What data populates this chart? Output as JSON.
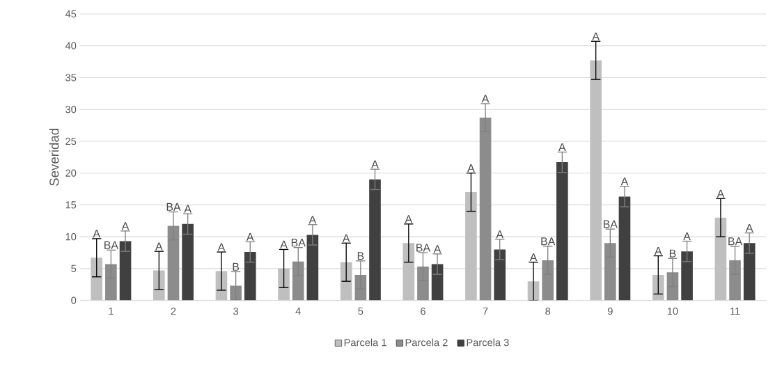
{
  "chart_data": {
    "type": "bar",
    "ylabel": "Severidad",
    "categories": [
      "1",
      "2",
      "3",
      "4",
      "5",
      "6",
      "7",
      "8",
      "9",
      "10",
      "11"
    ],
    "series": [
      {
        "name": "Parcela 1",
        "color": "#bfbfbf",
        "values": [
          6.7,
          4.7,
          4.6,
          5,
          6,
          9,
          17,
          3,
          37.7,
          4,
          13
        ],
        "errors": [
          3,
          3,
          3,
          3,
          3,
          3,
          3,
          3,
          3,
          3,
          3
        ]
      },
      {
        "name": "Parcela 2",
        "color": "#8c8c8c",
        "values": [
          5.7,
          11.7,
          2.3,
          6.1,
          4,
          5.3,
          28.7,
          6.3,
          9,
          4.4,
          6.3
        ],
        "errors": [
          2.2,
          2.2,
          2.2,
          2.2,
          2.2,
          2.2,
          2.2,
          2.2,
          2.2,
          2.2,
          2.2
        ]
      },
      {
        "name": "Parcela 3",
        "color": "#404040",
        "values": [
          9.3,
          12,
          7.6,
          10.3,
          19,
          5.7,
          8,
          21.7,
          16.3,
          7.7,
          9
        ],
        "errors": [
          1.6,
          1.6,
          1.6,
          1.6,
          1.6,
          1.6,
          1.6,
          1.6,
          1.6,
          1.6,
          1.6
        ]
      }
    ],
    "ylim": [
      0,
      45
    ],
    "yticks": [
      0,
      5,
      10,
      15,
      20,
      25,
      30,
      35,
      40,
      45
    ],
    "grid": "y",
    "legend": "bottom",
    "annotations": [
      "A",
      "BA",
      "A",
      "A",
      "BA",
      "A",
      "A",
      "B",
      "A",
      "A",
      "BA",
      "A",
      "A",
      "B",
      "A",
      "A",
      "BA",
      "A",
      "A",
      "A",
      "A",
      "A",
      "BA",
      "A",
      "A",
      "BA",
      "A",
      "A",
      "B",
      "A",
      "A",
      "BA",
      "A"
    ]
  }
}
